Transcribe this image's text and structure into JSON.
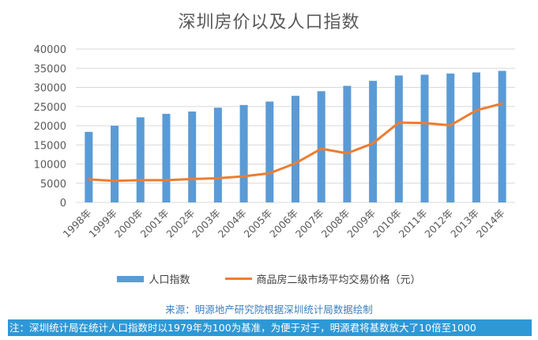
{
  "colors": {
    "bar": "#5b9bd5",
    "line": "#ed7d31",
    "grid": "#d9d9d9",
    "axis_text": "#595959",
    "note_bg": "#2e98d6"
  },
  "chart_data": {
    "type": "bar",
    "title": "深圳房价以及人口指数",
    "categories": [
      "1998年",
      "1999年",
      "2000年",
      "2001年",
      "2002年",
      "2003年",
      "2004年",
      "2005年",
      "2006年",
      "2007年",
      "2008年",
      "2009年",
      "2010年",
      "2011年",
      "2012年",
      "2013年",
      "2014年"
    ],
    "ylim": [
      0,
      40000
    ],
    "yticks": [
      0,
      5000,
      10000,
      15000,
      20000,
      25000,
      30000,
      35000,
      40000
    ],
    "grid": true,
    "legend_position": "bottom",
    "series": [
      {
        "name": "人口指数",
        "type": "bar",
        "values": [
          18400,
          20000,
          22200,
          23100,
          23700,
          24700,
          25400,
          26300,
          27800,
          29000,
          30400,
          31700,
          33100,
          33300,
          33600,
          33900,
          34300
        ]
      },
      {
        "name": "商品房二级市场平均交易价格（元）",
        "type": "line",
        "values": [
          6000,
          5600,
          5800,
          5800,
          6100,
          6300,
          6800,
          7600,
          10200,
          14000,
          12800,
          15400,
          20800,
          20700,
          20100,
          24000,
          25800
        ]
      }
    ]
  },
  "source_text": "来源：明源地产研究院根据深圳统计局数据绘制",
  "note_text": "注：深圳统计局在统计人口指数时以1979年为100为基准，为便于对于，明源君将基数放大了10倍至1000"
}
